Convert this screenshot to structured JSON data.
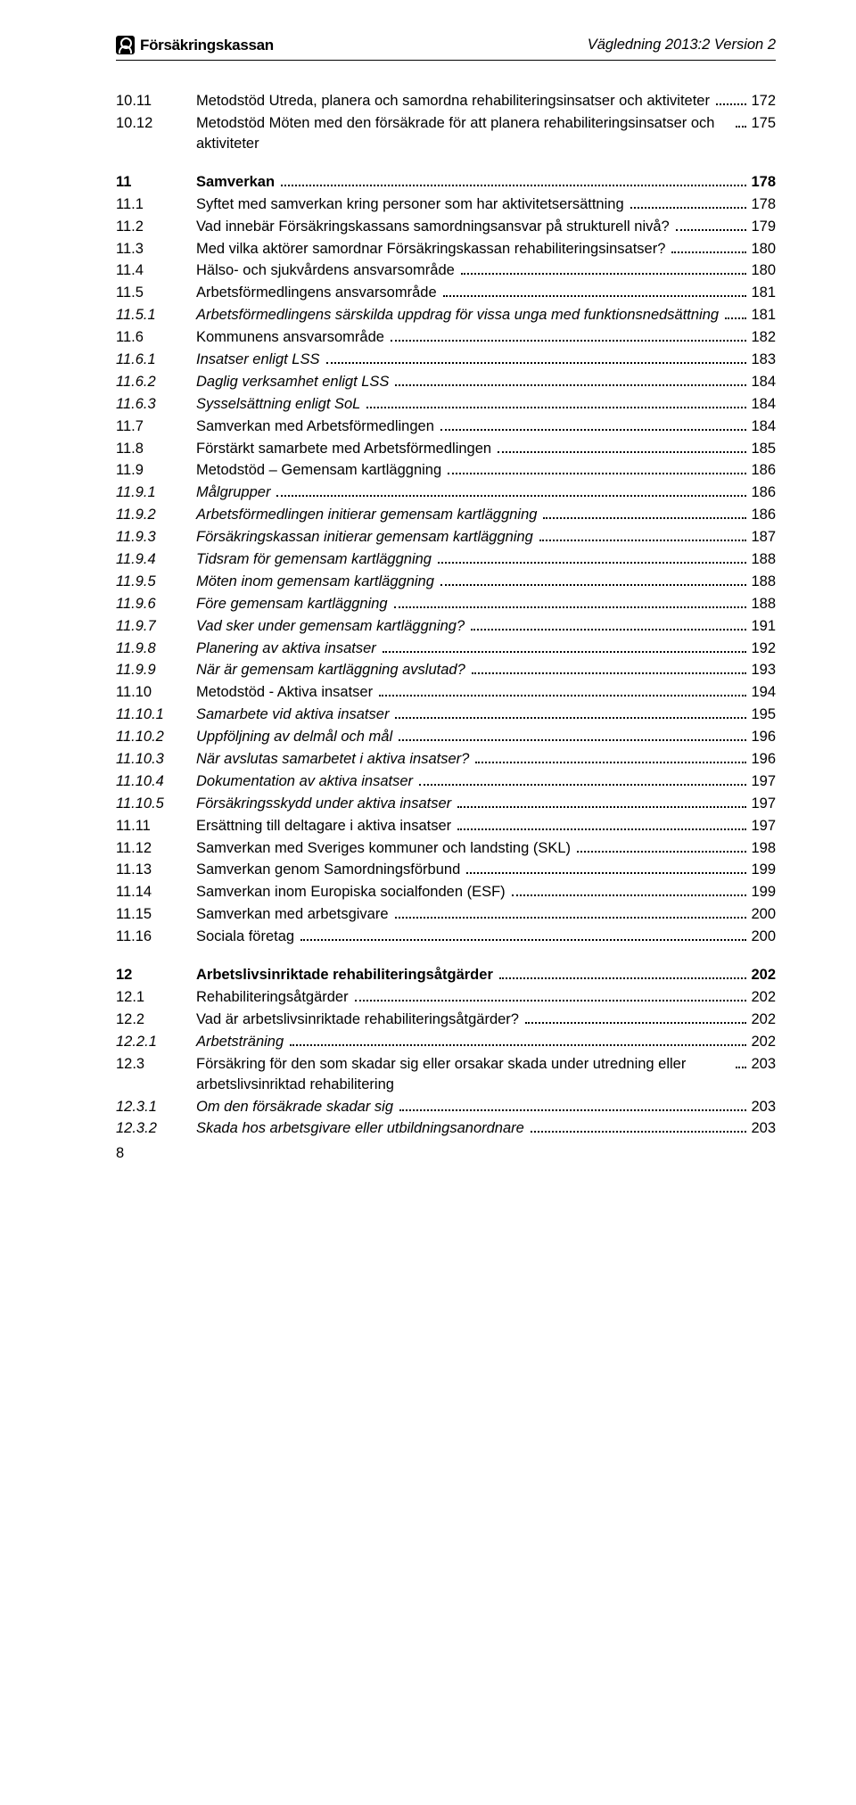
{
  "header": {
    "logo_text": "Försäkringskassan",
    "doc_title": "Vägledning 2013:2 Version 2"
  },
  "page_number": "8",
  "toc": [
    {
      "num": "10.11",
      "text": "Metodstöd Utreda, planera och samordna rehabiliteringsinsatser och aktiviteter",
      "page": "172",
      "ital": false,
      "bold": false
    },
    {
      "num": "10.12",
      "text": "Metodstöd Möten med den försäkrade för att planera rehabiliteringsinsatser och aktiviteter",
      "page": "175",
      "ital": false,
      "bold": false
    },
    {
      "gap": true
    },
    {
      "num": "11",
      "text": "Samverkan",
      "page": "178",
      "ital": false,
      "bold": true
    },
    {
      "num": "11.1",
      "text": "Syftet med samverkan kring personer som har aktivitetsersättning",
      "page": "178",
      "ital": false,
      "bold": false
    },
    {
      "num": "11.2",
      "text": "Vad innebär Försäkringskassans samordningsansvar på strukturell nivå?",
      "page": "179",
      "ital": false,
      "bold": false
    },
    {
      "num": "11.3",
      "text": "Med vilka aktörer samordnar Försäkringskassan rehabiliteringsinsatser?",
      "page": "180",
      "ital": false,
      "bold": false
    },
    {
      "num": "11.4",
      "text": "Hälso- och sjukvårdens ansvarsområde",
      "page": "180",
      "ital": false,
      "bold": false
    },
    {
      "num": "11.5",
      "text": "Arbetsförmedlingens ansvarsområde",
      "page": "181",
      "ital": false,
      "bold": false
    },
    {
      "num": "11.5.1",
      "text": "Arbetsförmedlingens särskilda uppdrag för vissa unga med funktionsnedsättning",
      "page": "181",
      "ital": true,
      "bold": false
    },
    {
      "num": "11.6",
      "text": "Kommunens ansvarsområde",
      "page": "182",
      "ital": false,
      "bold": false
    },
    {
      "num": "11.6.1",
      "text": "Insatser enligt LSS",
      "page": "183",
      "ital": true,
      "bold": false
    },
    {
      "num": "11.6.2",
      "text": "Daglig verksamhet enligt LSS",
      "page": "184",
      "ital": true,
      "bold": false
    },
    {
      "num": "11.6.3",
      "text": "Sysselsättning enligt SoL",
      "page": "184",
      "ital": true,
      "bold": false
    },
    {
      "num": "11.7",
      "text": "Samverkan med Arbetsförmedlingen",
      "page": "184",
      "ital": false,
      "bold": false
    },
    {
      "num": "11.8",
      "text": "Förstärkt samarbete med Arbetsförmedlingen",
      "page": "185",
      "ital": false,
      "bold": false
    },
    {
      "num": "11.9",
      "text": "Metodstöd – Gemensam kartläggning",
      "page": "186",
      "ital": false,
      "bold": false
    },
    {
      "num": "11.9.1",
      "text": "Målgrupper",
      "page": "186",
      "ital": true,
      "bold": false
    },
    {
      "num": "11.9.2",
      "text": "Arbetsförmedlingen initierar gemensam kartläggning",
      "page": "186",
      "ital": true,
      "bold": false
    },
    {
      "num": "11.9.3",
      "text": "Försäkringskassan initierar gemensam kartläggning",
      "page": "187",
      "ital": true,
      "bold": false
    },
    {
      "num": "11.9.4",
      "text": "Tidsram för gemensam kartläggning",
      "page": "188",
      "ital": true,
      "bold": false
    },
    {
      "num": "11.9.5",
      "text": "Möten inom gemensam kartläggning",
      "page": "188",
      "ital": true,
      "bold": false
    },
    {
      "num": "11.9.6",
      "text": "Före gemensam kartläggning",
      "page": "188",
      "ital": true,
      "bold": false
    },
    {
      "num": "11.9.7",
      "text": "Vad sker under gemensam kartläggning?",
      "page": "191",
      "ital": true,
      "bold": false
    },
    {
      "num": "11.9.8",
      "text": "Planering av aktiva insatser",
      "page": "192",
      "ital": true,
      "bold": false
    },
    {
      "num": "11.9.9",
      "text": "När är gemensam kartläggning avslutad?",
      "page": "193",
      "ital": true,
      "bold": false
    },
    {
      "num": "11.10",
      "text": "Metodstöd - Aktiva insatser",
      "page": "194",
      "ital": false,
      "bold": false
    },
    {
      "num": "11.10.1",
      "text": "Samarbete vid aktiva insatser",
      "page": "195",
      "ital": true,
      "bold": false
    },
    {
      "num": "11.10.2",
      "text": "Uppföljning av delmål och mål",
      "page": "196",
      "ital": true,
      "bold": false
    },
    {
      "num": "11.10.3",
      "text": "När avslutas samarbetet i aktiva insatser?",
      "page": "196",
      "ital": true,
      "bold": false
    },
    {
      "num": "11.10.4",
      "text": "Dokumentation av aktiva insatser",
      "page": "197",
      "ital": true,
      "bold": false
    },
    {
      "num": "11.10.5",
      "text": "Försäkringsskydd under aktiva insatser",
      "page": "197",
      "ital": true,
      "bold": false
    },
    {
      "num": "11.11",
      "text": "Ersättning till deltagare i aktiva insatser",
      "page": "197",
      "ital": false,
      "bold": false
    },
    {
      "num": "11.12",
      "text": "Samverkan med Sveriges kommuner och landsting (SKL)",
      "page": "198",
      "ital": false,
      "bold": false
    },
    {
      "num": "11.13",
      "text": "Samverkan genom Samordningsförbund",
      "page": "199",
      "ital": false,
      "bold": false
    },
    {
      "num": "11.14",
      "text": "Samverkan inom Europiska socialfonden (ESF)",
      "page": "199",
      "ital": false,
      "bold": false
    },
    {
      "num": "11.15",
      "text": "Samverkan med arbetsgivare",
      "page": "200",
      "ital": false,
      "bold": false
    },
    {
      "num": "11.16",
      "text": "Sociala företag",
      "page": "200",
      "ital": false,
      "bold": false
    },
    {
      "gap": true
    },
    {
      "num": "12",
      "text": "Arbetslivsinriktade rehabiliteringsåtgärder",
      "page": "202",
      "ital": false,
      "bold": true
    },
    {
      "num": "12.1",
      "text": "Rehabiliteringsåtgärder",
      "page": "202",
      "ital": false,
      "bold": false
    },
    {
      "num": "12.2",
      "text": "Vad är arbetslivsinriktade rehabiliteringsåtgärder?",
      "page": "202",
      "ital": false,
      "bold": false
    },
    {
      "num": "12.2.1",
      "text": "Arbetsträning",
      "page": "202",
      "ital": true,
      "bold": false
    },
    {
      "num": "12.3",
      "text": "Försäkring för den som skadar sig eller orsakar skada under utredning eller arbetslivsinriktad rehabilitering",
      "page": "203",
      "ital": false,
      "bold": false
    },
    {
      "num": "12.3.1",
      "text": "Om den försäkrade skadar sig",
      "page": "203",
      "ital": true,
      "bold": false
    },
    {
      "num": "12.3.2",
      "text": "Skada hos arbetsgivare eller utbildningsanordnare",
      "page": "203",
      "ital": true,
      "bold": false
    }
  ]
}
